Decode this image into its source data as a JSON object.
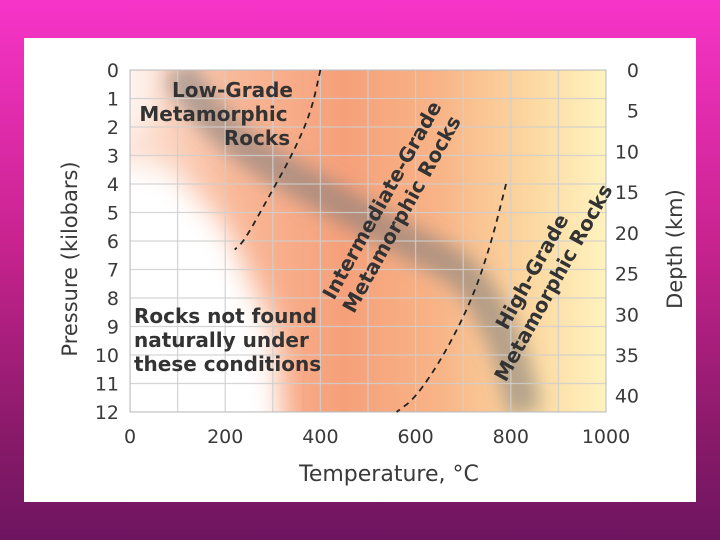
{
  "chart_data": {
    "type": "area",
    "xlabel": "Temperature, °C",
    "ylabel": "Pressure (kilobars)",
    "y2label": "Depth (km)",
    "xlim": [
      0,
      1000
    ],
    "ylim": [
      0,
      12
    ],
    "y2lim": [
      0,
      42
    ],
    "x_ticks": [
      "0",
      "200",
      "400",
      "600",
      "800",
      "1000"
    ],
    "y_ticks": [
      "0",
      "1",
      "2",
      "3",
      "4",
      "5",
      "6",
      "7",
      "8",
      "9",
      "10",
      "11",
      "12"
    ],
    "y2_ticks": [
      "0",
      "5",
      "10",
      "15",
      "20",
      "25",
      "30",
      "35",
      "40"
    ],
    "grid": true,
    "regions": [
      {
        "label_lines": [
          "Low-Grade",
          "Metamorphic",
          "Rocks"
        ]
      },
      {
        "label_lines": [
          "Intermediate-Grade",
          "Metamorphic Rocks"
        ]
      },
      {
        "label_lines": [
          "High-Grade",
          "Metamorphic Rocks"
        ]
      },
      {
        "label_lines": [
          "Rocks not found",
          "naturally under",
          "these conditions"
        ]
      }
    ],
    "boundaries": [
      {
        "name": "low-intermediate",
        "style": "dashed",
        "points": [
          [
            400,
            0
          ],
          [
            380,
            1.5
          ],
          [
            340,
            3
          ],
          [
            290,
            4.5
          ],
          [
            240,
            6
          ],
          [
            220,
            6.3
          ]
        ]
      },
      {
        "name": "intermediate-high",
        "style": "dashed",
        "points": [
          [
            790,
            4
          ],
          [
            760,
            6
          ],
          [
            720,
            8
          ],
          [
            660,
            10
          ],
          [
            600,
            11.5
          ],
          [
            560,
            12
          ]
        ]
      }
    ],
    "gradient_bands": [
      {
        "points": [
          [
            100,
            0
          ],
          [
            160,
            1.5
          ],
          [
            260,
            3
          ],
          [
            420,
            4.5
          ],
          [
            580,
            6
          ],
          [
            700,
            7
          ],
          [
            760,
            8.5
          ],
          [
            800,
            10
          ],
          [
            830,
            12
          ]
        ]
      }
    ],
    "colors": {
      "cool": "#ffffff",
      "warm": "#f6a37c",
      "hot": "#fff0b4",
      "band": "#8a8a8a",
      "grid": "#cfcfcf"
    }
  }
}
